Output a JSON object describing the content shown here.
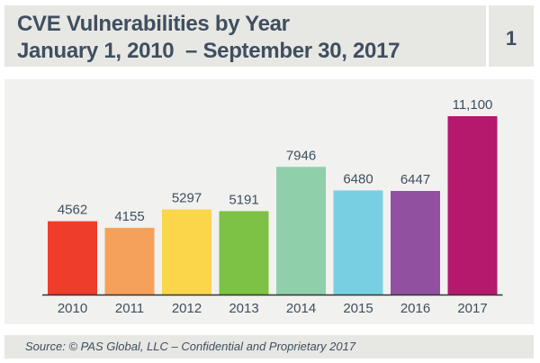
{
  "header": {
    "title": "CVE Vulnerabilities by Year",
    "subtitle": "January 1, 2010  – September 30, 2017",
    "page_number": "1"
  },
  "footer": {
    "source": "Source: © PAS Global, LLC  – Confidential and Proprietary 2017"
  },
  "chart_data": {
    "type": "bar",
    "categories": [
      "2010",
      "2011",
      "2012",
      "2013",
      "2014",
      "2015",
      "2016",
      "2017"
    ],
    "values": [
      4562,
      4155,
      5297,
      5191,
      7946,
      6480,
      6447,
      11100
    ],
    "data_labels": [
      "4562",
      "4155",
      "5297",
      "5191",
      "7946",
      "6480",
      "6447",
      "11,100"
    ],
    "colors": [
      "#ee3d2b",
      "#f6a15a",
      "#fbd54a",
      "#7dc244",
      "#8fcfaa",
      "#79cfe2",
      "#9251a0",
      "#b4196d"
    ],
    "ylim": [
      0,
      11100
    ],
    "grid": false,
    "legend": "none"
  }
}
